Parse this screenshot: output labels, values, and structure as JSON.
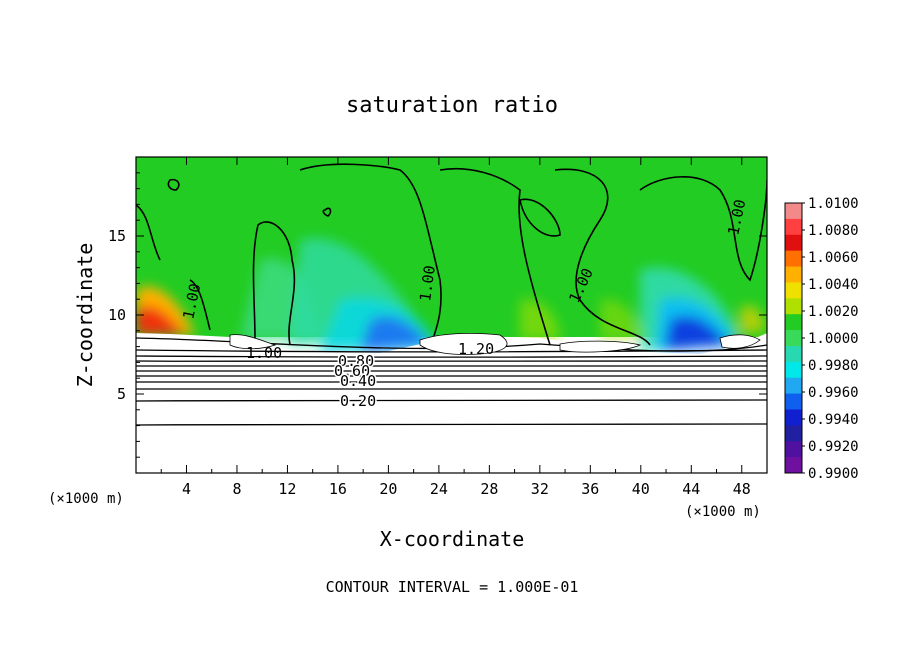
{
  "chart_data": {
    "type": "heatmap",
    "title": "saturation ratio",
    "xlabel": "X-coordinate",
    "ylabel": "Z-coordinate",
    "x_unit": "(×1000 m)",
    "y_unit": "(×1000 m)",
    "xlim": [
      0,
      50
    ],
    "ylim": [
      0,
      20
    ],
    "x_ticks": [
      "4",
      "8",
      "12",
      "16",
      "20",
      "24",
      "28",
      "32",
      "36",
      "40",
      "44",
      "48"
    ],
    "y_ticks": [
      "5",
      "10",
      "15"
    ],
    "colorbar": {
      "labels": [
        "1.0100",
        "1.0080",
        "1.0060",
        "1.0040",
        "1.0020",
        "1.0000",
        "0.9980",
        "0.9960",
        "0.9940",
        "0.9920",
        "0.9900"
      ],
      "colors": [
        "#f28a8a",
        "#ff4040",
        "#e01010",
        "#ff7000",
        "#ffb000",
        "#f0e000",
        "#b0e000",
        "#22cc22",
        "#39d95a",
        "#28d8b0",
        "#00e8e8",
        "#20a8f0",
        "#1060f0",
        "#1020d0",
        "#2020a0",
        "#5010a0",
        "#7010a0"
      ]
    },
    "contour_labels": [
      "1.00",
      "1.00",
      "1.00",
      "1.00",
      "1.00",
      "1.20",
      "0.80",
      "0.60",
      "0.40",
      "0.20"
    ],
    "footer": "CONTOUR INTERVAL = 1.000E-01"
  }
}
